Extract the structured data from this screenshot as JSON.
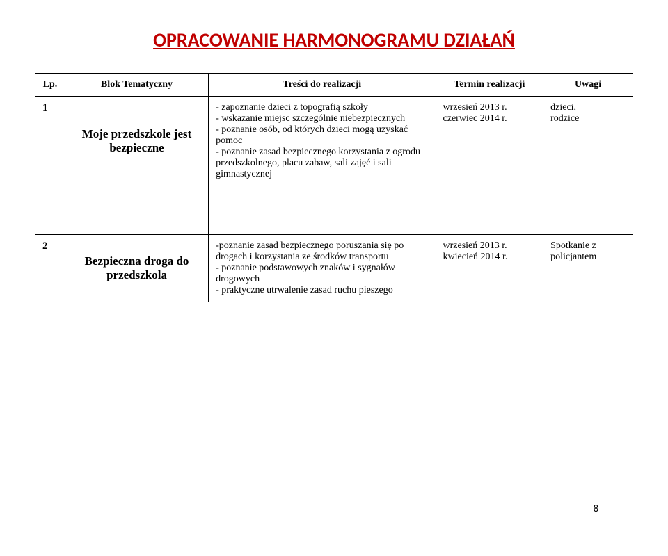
{
  "document": {
    "title": "OPRACOWANIE HARMONOGRAMU DZIAŁAŃ",
    "title_color": "#c00000",
    "title_fontsize": 28,
    "page_number": "8"
  },
  "table": {
    "headers": {
      "lp": "Lp.",
      "blok": "Blok  Tematyczny",
      "tresci": "Treści do realizacji",
      "termin": "Termin realizacji",
      "uwagi": "Uwagi"
    },
    "rows": [
      {
        "lp": "1",
        "blok": "Moje przedszkole jest bezpieczne",
        "tresci": "- zapoznanie dzieci z topografią szkoły\n- wskazanie miejsc szczególnie niebezpiecznych\n- poznanie osób, od których dzieci mogą uzyskać pomoc\n- poznanie zasad bezpiecznego korzystania z ogrodu przedszkolnego, placu zabaw, sali zajęć i sali gimnastycznej",
        "termin": "wrzesień 2013 r.\nczerwiec 2014 r.",
        "uwagi": "dzieci,\nrodzice"
      },
      {
        "lp": "2",
        "blok": "Bezpieczna droga do przedszkola",
        "tresci": "-poznanie zasad bezpiecznego poruszania się po drogach i korzystania ze środków transportu\n- poznanie podstawowych znaków i sygnałów drogowych\n- praktyczne utrwalenie zasad ruchu pieszego",
        "termin": "wrzesień 2013 r.\nkwiecień 2014 r.",
        "uwagi": "Spotkanie z policjantem"
      }
    ]
  },
  "styling": {
    "border_color": "#000000",
    "header_fontsize": 15,
    "body_fontsize": 14,
    "blok_fontsize": 17,
    "font_family_title": "Calibri",
    "font_family_body": "Times New Roman",
    "background": "#ffffff"
  }
}
